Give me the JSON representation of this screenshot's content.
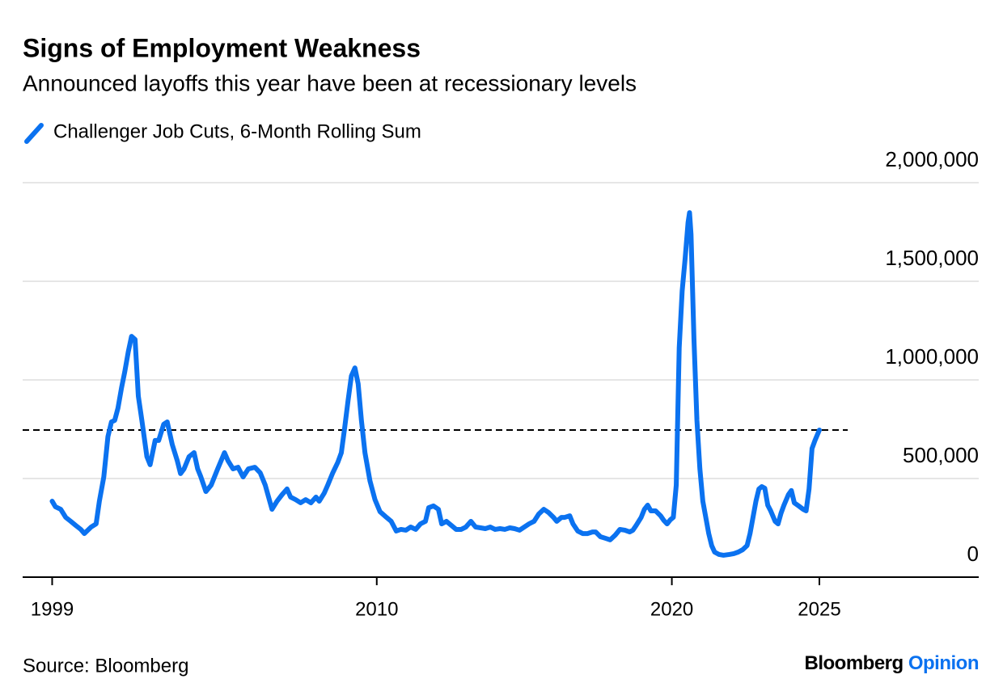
{
  "chart_data": {
    "type": "line",
    "title": "Signs of Employment Weakness",
    "subtitle": "Announced layoffs this year have been at recessionary levels",
    "source": "Source: Bloomberg",
    "brand": "Bloomberg",
    "brand_section": "Opinion",
    "legend": "top-left",
    "grid": true,
    "hline": 746000,
    "xlim": [
      1998.0,
      2030.4
    ],
    "xticks": [
      1999,
      2010,
      2020,
      2025
    ],
    "ylim": [
      0,
      2000000
    ],
    "yticks": [
      0,
      {
        "value": 500000,
        "label": "500,000"
      },
      {
        "value": 1000000,
        "label": "1,000,000"
      },
      {
        "value": 1500000,
        "label": "1,500,000"
      },
      {
        "value": 2000000,
        "label": "2,000,000"
      }
    ],
    "x": [
      1999.0,
      1999.11,
      1999.29,
      1999.46,
      1999.63,
      1999.8,
      1999.97,
      2000.09,
      2000.32,
      2000.49,
      2000.6,
      2000.75,
      2000.89,
      2001.01,
      2001.12,
      2001.23,
      2001.35,
      2001.46,
      2001.58,
      2001.69,
      2001.81,
      2001.92,
      2002.04,
      2002.21,
      2002.32,
      2002.49,
      2002.61,
      2002.78,
      2002.9,
      2003.07,
      2003.24,
      2003.35,
      2003.47,
      2003.64,
      2003.81,
      2003.93,
      2004.04,
      2004.21,
      2004.39,
      2004.61,
      2004.84,
      2004.96,
      2005.13,
      2005.3,
      2005.47,
      2005.65,
      2005.87,
      2006.05,
      2006.22,
      2006.45,
      2006.62,
      2006.79,
      2006.96,
      2007.08,
      2007.25,
      2007.42,
      2007.59,
      2007.77,
      2007.94,
      2008.05,
      2008.22,
      2008.34,
      2008.51,
      2008.68,
      2008.8,
      2008.91,
      2009.03,
      2009.14,
      2009.26,
      2009.37,
      2009.48,
      2009.6,
      2009.77,
      2009.94,
      2010.11,
      2010.33,
      2010.49,
      2010.66,
      2010.82,
      2010.99,
      2011.15,
      2011.32,
      2011.48,
      2011.65,
      2011.76,
      2011.92,
      2012.09,
      2012.2,
      2012.36,
      2012.53,
      2012.69,
      2012.86,
      2013.02,
      2013.19,
      2013.35,
      2013.52,
      2013.68,
      2013.85,
      2014.01,
      2014.18,
      2014.34,
      2014.51,
      2014.67,
      2014.84,
      2015.0,
      2015.16,
      2015.33,
      2015.49,
      2015.66,
      2015.82,
      2015.99,
      2016.1,
      2016.26,
      2016.37,
      2016.54,
      2016.65,
      2016.81,
      2016.98,
      2017.14,
      2017.31,
      2017.42,
      2017.58,
      2017.75,
      2017.91,
      2018.08,
      2018.24,
      2018.41,
      2018.57,
      2018.68,
      2018.79,
      2018.96,
      2019.07,
      2019.18,
      2019.29,
      2019.45,
      2019.62,
      2019.73,
      2019.84,
      2019.95,
      2020.05,
      2020.15,
      2020.25,
      2020.35,
      2020.45,
      2020.55,
      2020.6,
      2020.65,
      2020.75,
      2020.85,
      2020.95,
      2021.05,
      2021.15,
      2021.25,
      2021.35,
      2021.45,
      2021.6,
      2021.75,
      2021.95,
      2022.1,
      2022.25,
      2022.4,
      2022.55,
      2022.65,
      2022.75,
      2022.85,
      2022.95,
      2023.05,
      2023.15,
      2023.25,
      2023.35,
      2023.5,
      2023.6,
      2023.7,
      2023.8,
      2023.95,
      2024.05,
      2024.15,
      2024.3,
      2024.45,
      2024.55,
      2024.65,
      2024.75,
      2024.85,
      2025.0
    ],
    "series": [
      {
        "name": "Challenger Job Cuts, 6-Month Rolling Sum",
        "color": "#0b72f0",
        "values": [
          385000,
          357000,
          344000,
          303000,
          283000,
          262000,
          242000,
          221000,
          254000,
          270000,
          385000,
          508000,
          713000,
          787000,
          795000,
          857000,
          959000,
          1041000,
          1143000,
          1221000,
          1205000,
          918000,
          795000,
          611000,
          570000,
          693000,
          693000,
          775000,
          787000,
          672000,
          590000,
          525000,
          549000,
          611000,
          631000,
          549000,
          508000,
          434000,
          467000,
          549000,
          631000,
          590000,
          549000,
          557000,
          508000,
          549000,
          557000,
          529000,
          467000,
          344000,
          385000,
          418000,
          447000,
          406000,
          393000,
          377000,
          393000,
          377000,
          406000,
          385000,
          426000,
          467000,
          529000,
          582000,
          631000,
          754000,
          898000,
          1020000,
          1061000,
          980000,
          795000,
          631000,
          488000,
          393000,
          332000,
          303000,
          283000,
          234000,
          242000,
          238000,
          254000,
          242000,
          270000,
          283000,
          352000,
          361000,
          344000,
          270000,
          283000,
          262000,
          242000,
          242000,
          254000,
          283000,
          254000,
          250000,
          246000,
          254000,
          242000,
          246000,
          242000,
          250000,
          246000,
          238000,
          254000,
          270000,
          283000,
          320000,
          344000,
          328000,
          303000,
          283000,
          303000,
          303000,
          311000,
          270000,
          234000,
          221000,
          221000,
          229000,
          229000,
          205000,
          197000,
          189000,
          213000,
          242000,
          238000,
          229000,
          238000,
          262000,
          303000,
          344000,
          365000,
          336000,
          336000,
          311000,
          287000,
          270000,
          291000,
          303000,
          467000,
          1164000,
          1451000,
          1615000,
          1799000,
          1848000,
          1738000,
          1205000,
          795000,
          549000,
          385000,
          303000,
          221000,
          160000,
          127000,
          115000,
          111000,
          115000,
          119000,
          127000,
          139000,
          160000,
          221000,
          303000,
          385000,
          447000,
          459000,
          451000,
          365000,
          336000,
          283000,
          270000,
          324000,
          365000,
          418000,
          439000,
          377000,
          361000,
          344000,
          336000,
          447000,
          652000,
          693000,
          746000
        ]
      }
    ]
  }
}
